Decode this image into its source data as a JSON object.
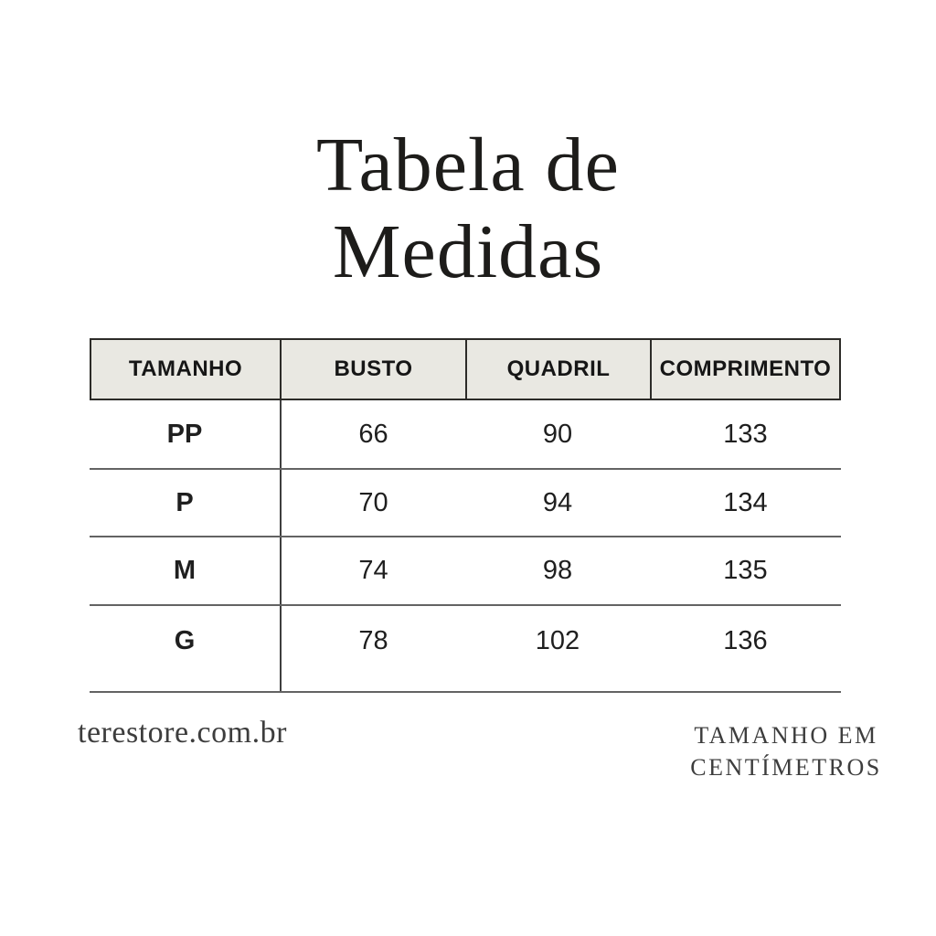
{
  "title": {
    "line1": "Tabela de",
    "line2": "Medidas"
  },
  "chart_data": {
    "type": "table",
    "title": "Tabela de Medidas",
    "columns": [
      "TAMANHO",
      "BUSTO",
      "QUADRIL",
      "COMPRIMENTO"
    ],
    "rows": [
      [
        "PP",
        "66",
        "90",
        "133"
      ],
      [
        "P",
        "70",
        "94",
        "134"
      ],
      [
        "M",
        "74",
        "98",
        "135"
      ],
      [
        "G",
        "78",
        "102",
        "136"
      ]
    ],
    "notes": "TAMANHO EM CENTÍMETROS"
  },
  "footer": {
    "website": "terestore.com.br",
    "units_line1": "TAMANHO EM",
    "units_line2": "CENTÍMETROS"
  },
  "colors": {
    "background": "#ffffff",
    "header_bg": "#e9e8e2",
    "header_border": "#2c2b28",
    "row_divider": "#636363",
    "column_divider": "#3f3f3f",
    "text": "#1f1f1f",
    "footer_text": "#3d3d3d"
  }
}
